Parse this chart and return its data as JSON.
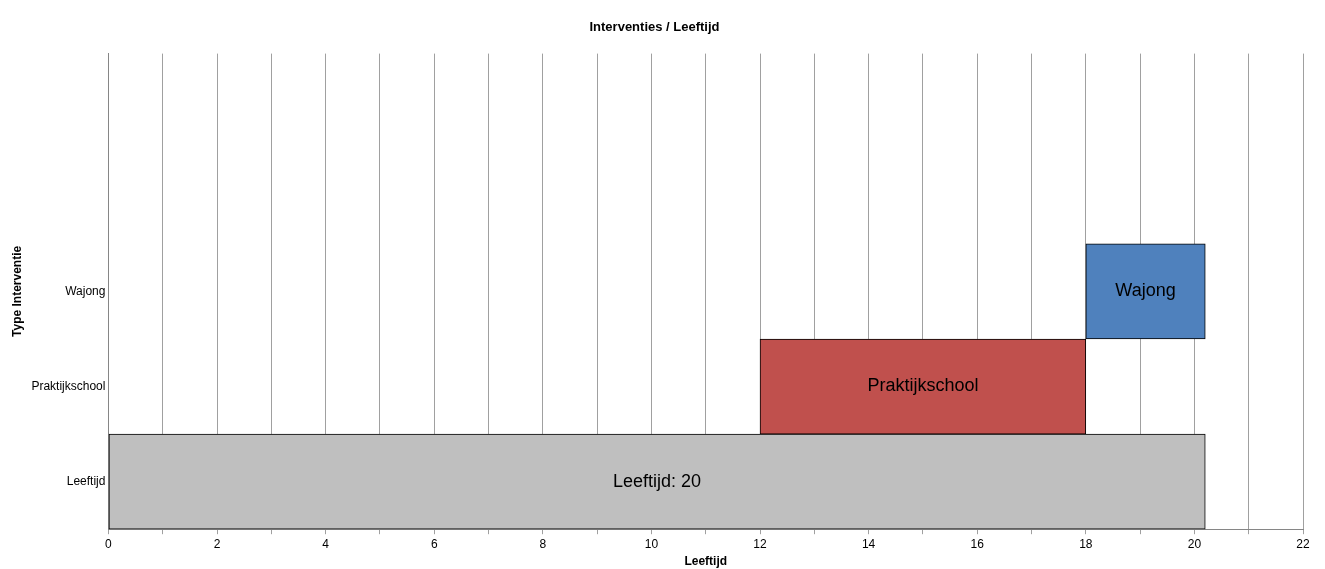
{
  "chart_data": {
    "type": "bar",
    "orientation": "horizontal",
    "title": "Interventies / Leeftijd",
    "xlabel": "Leeftijd",
    "ylabel": "Type Interventie",
    "categories": [
      null,
      null,
      "Wajong",
      "Praktijkschool",
      "Leeftijd"
    ],
    "base": [
      null,
      null,
      18,
      12,
      0
    ],
    "values": [
      null,
      null,
      2.2,
      6,
      20.2
    ],
    "colors": [
      "#4f81bd",
      "#4f81bd",
      "#4f81bd",
      "#c0504d",
      "#bfbfbf"
    ],
    "value_labels": [
      null,
      null,
      "Wajong",
      "Praktijkschool",
      "Leeftijd: 20"
    ],
    "xlim": [
      0,
      22
    ],
    "xticks": [
      0,
      {
        "value": 1,
        "label": null
      },
      2,
      {
        "value": 3,
        "label": null
      },
      4,
      {
        "value": 5,
        "label": null
      },
      6,
      {
        "value": 7,
        "label": null
      },
      8,
      {
        "value": 9,
        "label": null
      },
      10,
      {
        "value": 11,
        "label": null
      },
      12,
      {
        "value": 13,
        "label": null
      },
      14,
      {
        "value": 15,
        "label": null
      },
      16,
      {
        "value": 17,
        "label": null
      },
      18,
      {
        "value": 19,
        "label": null
      },
      20,
      {
        "value": 21,
        "label": null
      },
      22
    ],
    "grid": "x",
    "legend": false
  }
}
